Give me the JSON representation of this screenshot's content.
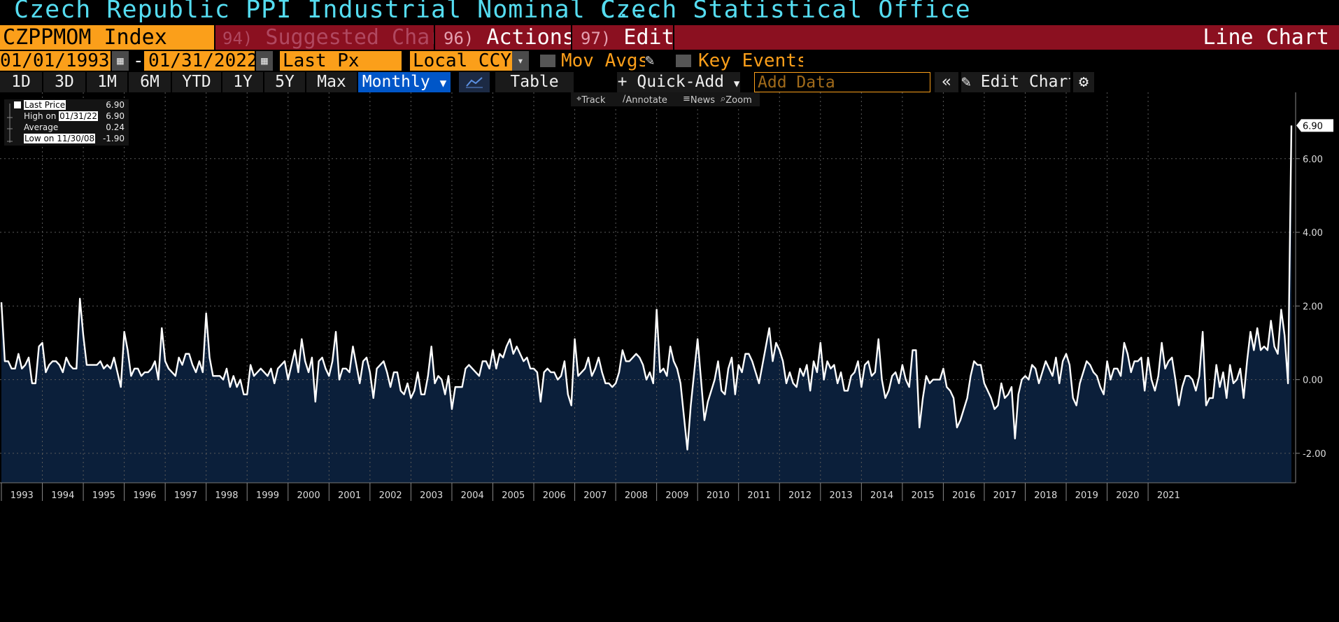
{
  "header": {
    "title": "Czech Republic PPI Industrial Nominal C...",
    "source": "Czech Statistical Office"
  },
  "toolbar": {
    "ticker": "CZPPMOM Index",
    "suggested_num": "94)",
    "suggested_label": "Suggested Charts",
    "actions_num": "96)",
    "actions_label": "Actions",
    "edit_num": "97)",
    "edit_label": "Edit",
    "chart_type": "Line Chart"
  },
  "range": {
    "start_date": "01/01/1993",
    "sep": "-",
    "end_date": "01/31/2022",
    "field": "Last Px",
    "currency": "Local CCY",
    "mov_avgs": "Mov Avgs",
    "key_events": "Key Events"
  },
  "periods": [
    "1D",
    "3D",
    "1M",
    "6M",
    "YTD",
    "1Y",
    "5Y",
    "Max"
  ],
  "frequency": "Monthly",
  "table_label": "Table",
  "quick_add_label": "Quick-Add",
  "add_data_placeholder": "Add Data",
  "edit_chart_label": "Edit Chart",
  "tools": {
    "track": "Track",
    "annotate": "Annotate",
    "news": "News",
    "zoom": "Zoom"
  },
  "legend": {
    "last_label": "Last Price",
    "last_value": "6.90",
    "high_label": "High on",
    "high_date": "01/31/22",
    "high_value": "6.90",
    "avg_label": "Average",
    "avg_value": "0.24",
    "low_label": "Low on 11/30/08",
    "low_value": "-1.90"
  },
  "colors": {
    "orange": "#fb9f1a",
    "dark_red": "#8b1020",
    "title_cyan": "#55dcf0",
    "selected_blue": "#0056c8",
    "area_fill": "#0b1f3a",
    "line": "#ffffff"
  },
  "chart_data": {
    "type": "area",
    "ylim": [
      -2.8,
      7.8
    ],
    "y_ticks": [
      -2,
      0,
      2,
      4,
      6
    ],
    "y_tick_labels": [
      "-2.00",
      "0.00",
      "2.00",
      "4.00",
      "6.00"
    ],
    "last_value_label": "6.90",
    "grid": true,
    "x_start": "1993-01",
    "x_end": "2022-01",
    "year_labels": [
      "1993",
      "1994",
      "1995",
      "1996",
      "1997",
      "1998",
      "1999",
      "2000",
      "2001",
      "2002",
      "2003",
      "2004",
      "2005",
      "2006",
      "2007",
      "2008",
      "2009",
      "2010",
      "2011",
      "2012",
      "2013",
      "2014",
      "2015",
      "2016",
      "2017",
      "2018",
      "2019",
      "2020",
      "2021"
    ],
    "series": [
      {
        "values": [
          2.1,
          0.5,
          0.5,
          0.3,
          0.3,
          0.7,
          0.3,
          0.4,
          0.6,
          -0.1,
          -0.1,
          0.9,
          1.0,
          0.2,
          0.4,
          0.5,
          0.5,
          0.4,
          0.2,
          0.6,
          0.4,
          0.3,
          0.3,
          2.2,
          1.2,
          0.4,
          0.4,
          0.4,
          0.4,
          0.5,
          0.3,
          0.4,
          0.3,
          0.6,
          0.2,
          -0.2,
          1.3,
          0.8,
          0.1,
          0.3,
          0.3,
          0.1,
          0.2,
          0.2,
          0.3,
          0.5,
          0.0,
          1.4,
          0.5,
          0.3,
          0.2,
          0.1,
          0.6,
          0.4,
          0.7,
          0.7,
          0.4,
          0.2,
          0.5,
          0.2,
          1.8,
          0.6,
          0.1,
          0.1,
          0.1,
          0.0,
          0.3,
          -0.2,
          0.1,
          -0.2,
          0.0,
          -0.4,
          -0.4,
          0.4,
          0.1,
          0.2,
          0.3,
          0.2,
          0.1,
          0.3,
          -0.1,
          0.3,
          0.4,
          0.5,
          0.0,
          0.4,
          0.8,
          0.2,
          1.1,
          0.5,
          0.2,
          0.6,
          -0.6,
          0.5,
          0.6,
          0.3,
          0.1,
          0.5,
          1.3,
          0.0,
          0.3,
          0.3,
          0.2,
          0.9,
          0.4,
          -0.1,
          0.5,
          0.6,
          0.2,
          -0.5,
          0.3,
          0.4,
          0.5,
          0.2,
          -0.2,
          0.2,
          0.2,
          -0.3,
          -0.4,
          -0.1,
          -0.5,
          -0.3,
          0.2,
          -0.4,
          -0.4,
          0.1,
          0.9,
          -0.1,
          0.1,
          0.0,
          -0.4,
          0.1,
          -0.8,
          -0.2,
          -0.2,
          -0.2,
          0.3,
          0.4,
          0.3,
          0.2,
          0.1,
          0.5,
          0.5,
          0.3,
          0.8,
          0.3,
          0.7,
          0.6,
          0.9,
          1.1,
          0.7,
          0.9,
          0.7,
          0.5,
          0.6,
          0.3,
          0.3,
          0.2,
          -0.6,
          0.2,
          0.3,
          0.2,
          0.2,
          0.0,
          0.1,
          0.5,
          -0.4,
          -0.7,
          1.1,
          0.1,
          0.2,
          0.3,
          0.6,
          0.1,
          0.3,
          0.6,
          0.2,
          -0.1,
          -0.1,
          -0.2,
          -0.1,
          0.2,
          0.8,
          0.5,
          0.5,
          0.6,
          0.7,
          0.6,
          0.4,
          0.0,
          0.2,
          -0.1,
          1.9,
          0.2,
          0.3,
          0.1,
          0.9,
          0.5,
          0.3,
          -0.1,
          -1.0,
          -1.9,
          -0.7,
          0.2,
          1.1,
          0.0,
          -1.1,
          -0.6,
          -0.3,
          0.0,
          0.5,
          -0.3,
          -0.4,
          0.3,
          0.6,
          -0.4,
          0.4,
          0.2,
          0.7,
          0.7,
          0.5,
          0.2,
          -0.1,
          0.4,
          0.9,
          1.4,
          0.5,
          1.0,
          0.8,
          0.5,
          -0.1,
          0.2,
          -0.1,
          -0.2,
          0.3,
          0.1,
          0.4,
          -0.3,
          0.5,
          0.2,
          1.0,
          0.0,
          0.5,
          0.3,
          0.4,
          -0.1,
          0.2,
          -0.3,
          -0.3,
          0.1,
          0.2,
          0.5,
          -0.2,
          0.4,
          0.5,
          0.1,
          0.2,
          1.1,
          0.0,
          -0.5,
          -0.3,
          0.1,
          0.2,
          -0.1,
          0.4,
          0.0,
          -0.2,
          0.8,
          0.8,
          -1.3,
          -0.5,
          0.1,
          -0.1,
          0.0,
          0.0,
          0.0,
          0.3,
          -0.2,
          -0.3,
          -0.5,
          -1.3,
          -1.1,
          -0.8,
          -0.5,
          0.1,
          0.5,
          0.4,
          0.4,
          -0.1,
          -0.3,
          -0.5,
          -0.8,
          -0.7,
          -0.1,
          -0.5,
          -0.4,
          -0.2,
          -1.6,
          -0.4,
          0.0,
          0.1,
          0.0,
          0.4,
          0.3,
          -0.1,
          0.2,
          0.5,
          0.3,
          0.1,
          0.6,
          -0.1,
          0.5,
          0.7,
          0.4,
          -0.5,
          -0.7,
          -0.1,
          0.2,
          0.5,
          0.4,
          0.2,
          0.1,
          -0.2,
          -0.4,
          0.5,
          0.0,
          0.3,
          0.3,
          0.1,
          1.0,
          0.7,
          0.2,
          0.5,
          0.5,
          0.6,
          -0.3,
          0.6,
          0.0,
          -0.3,
          0.1,
          1.0,
          0.3,
          0.5,
          0.6,
          0.0,
          -0.7,
          -0.2,
          0.1,
          0.1,
          0.0,
          -0.3,
          0.1,
          1.3,
          -0.7,
          -0.5,
          -0.5,
          0.4,
          -0.2,
          0.2,
          -0.5,
          0.4,
          -0.1,
          0.0,
          0.3,
          -0.5,
          0.5,
          1.3,
          0.8,
          1.4,
          0.8,
          0.9,
          0.8,
          1.6,
          0.9,
          0.7,
          1.9,
          1.2,
          -0.1,
          6.9
        ]
      }
    ]
  }
}
